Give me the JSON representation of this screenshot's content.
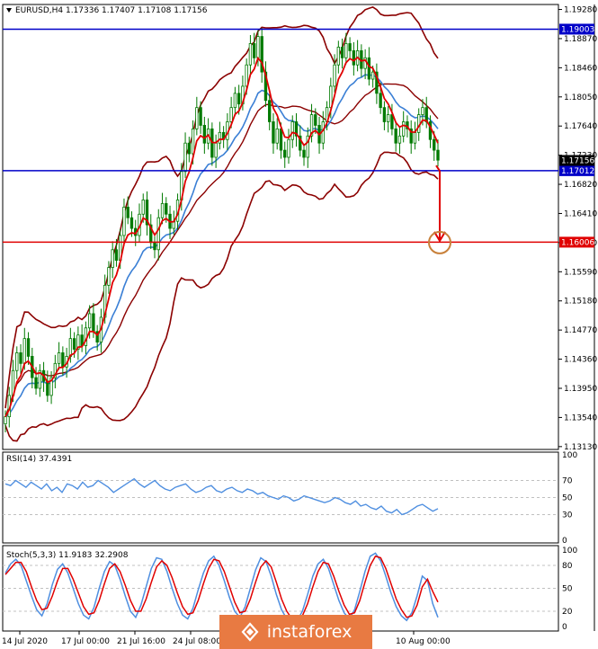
{
  "header": {
    "symbol": "EURUSD,H4",
    "ohlc": "1.17336 1.17407 1.17108 1.17156"
  },
  "rsi_header": "RSI(14) 37.4391",
  "stoch_header": "Stoch(5,3,3) 11.9183 32.2908",
  "watermark": "instaforex",
  "colors": {
    "candle": "#007a00",
    "bollinger": "#8b0000",
    "ema_fast": "#e00000",
    "ema_slow": "#3a7fd5",
    "level_blue": "#0000c8",
    "level_red": "#e00000",
    "arrow": "#e00000",
    "target_circle": "#c8803a",
    "indicator_line": "#4f8fe0",
    "signal_line": "#e00000"
  },
  "chart_data": [
    {
      "type": "candlestick",
      "title": "EURUSD,H4",
      "price_ticks": [
        "1.19280",
        "1.18870",
        "1.18460",
        "1.18050",
        "1.17640",
        "1.17230",
        "1.16820",
        "1.16410",
        "1.16000",
        "1.15590",
        "1.15180",
        "1.14770",
        "1.14360",
        "1.13950",
        "1.13540",
        "1.13130"
      ],
      "ylim": [
        1.1309,
        1.1935
      ],
      "levels": [
        {
          "value": 1.19003,
          "label": "1.19003",
          "color": "#0000c8"
        },
        {
          "value": 1.17012,
          "label": "1.17012",
          "color": "#0000c8"
        },
        {
          "value": 1.16006,
          "label": "1.16006",
          "color": "#e00000"
        }
      ],
      "current_price": {
        "value": 1.17156,
        "label": "1.17156"
      },
      "time_labels": [
        "14 Jul 2020",
        "17 Jul 00:00",
        "21 Jul 16:00",
        "24 Jul 08:00",
        "10 Aug 00:00"
      ],
      "forecast": {
        "from": 1.1701,
        "to": 1.16,
        "direction": "down"
      },
      "close": [
        1.1355,
        1.1385,
        1.142,
        1.1445,
        1.143,
        1.1465,
        1.144,
        1.141,
        1.1395,
        1.142,
        1.1405,
        1.1385,
        1.141,
        1.143,
        1.1445,
        1.1425,
        1.144,
        1.1465,
        1.145,
        1.147,
        1.1455,
        1.148,
        1.15,
        1.1475,
        1.146,
        1.1495,
        1.154,
        1.1565,
        1.159,
        1.1575,
        1.161,
        1.165,
        1.1635,
        1.162,
        1.161,
        1.164,
        1.166,
        1.1625,
        1.16,
        1.159,
        1.1635,
        1.1655,
        1.164,
        1.162,
        1.163,
        1.166,
        1.17,
        1.174,
        1.1725,
        1.176,
        1.179,
        1.1765,
        1.174,
        1.176,
        1.172,
        1.174,
        1.1755,
        1.1745,
        1.177,
        1.179,
        1.181,
        1.1795,
        1.182,
        1.185,
        1.188,
        1.186,
        1.189,
        1.184,
        1.18,
        1.177,
        1.174,
        1.176,
        1.173,
        1.172,
        1.1745,
        1.177,
        1.175,
        1.173,
        1.172,
        1.175,
        1.178,
        1.1765,
        1.174,
        1.177,
        1.179,
        1.182,
        1.185,
        1.1875,
        1.186,
        1.188,
        1.187,
        1.185,
        1.187,
        1.1845,
        1.186,
        1.183,
        1.184,
        1.181,
        1.179,
        1.177,
        1.178,
        1.176,
        1.174,
        1.175,
        1.177,
        1.176,
        1.174,
        1.1755,
        1.178,
        1.179,
        1.177,
        1.1745,
        1.173,
        1.1716
      ]
    },
    {
      "type": "line",
      "title": "RSI(14) 37.4391",
      "y_ticks": [
        "100",
        "70",
        "50",
        "30",
        "0"
      ],
      "ylim": [
        0,
        100
      ],
      "values": [
        66,
        64,
        70,
        66,
        62,
        68,
        64,
        60,
        66,
        58,
        62,
        56,
        66,
        64,
        60,
        68,
        62,
        64,
        70,
        66,
        62,
        56,
        60,
        64,
        68,
        72,
        66,
        62,
        66,
        70,
        64,
        60,
        58,
        62,
        64,
        66,
        60,
        56,
        58,
        62,
        64,
        58,
        56,
        60,
        62,
        58,
        56,
        60,
        58,
        54,
        56,
        52,
        50,
        48,
        52,
        50,
        46,
        48,
        52,
        50,
        48,
        46,
        44,
        46,
        50,
        48,
        44,
        42,
        46,
        40,
        42,
        38,
        36,
        40,
        34,
        32,
        36,
        30,
        32,
        36,
        40,
        42,
        38,
        34,
        37
      ]
    },
    {
      "type": "line",
      "title": "Stoch(5,3,3) 11.9183 32.2908",
      "y_ticks": [
        "100",
        "80",
        "50",
        "20",
        "0"
      ],
      "ylim": [
        0,
        100
      ],
      "series": [
        {
          "values": [
            70,
            82,
            88,
            80,
            60,
            40,
            22,
            14,
            30,
            55,
            75,
            82,
            70,
            50,
            30,
            15,
            10,
            25,
            50,
            72,
            85,
            80,
            62,
            40,
            20,
            12,
            28,
            52,
            76,
            90,
            88,
            72,
            50,
            30,
            15,
            10,
            24,
            48,
            70,
            86,
            92,
            80,
            60,
            38,
            20,
            12,
            26,
            50,
            74,
            90,
            85,
            66,
            42,
            22,
            10,
            5,
            8,
            20,
            42,
            66,
            82,
            88,
            76,
            55,
            34,
            18,
            10,
            22,
            46,
            72,
            92,
            96,
            86,
            66,
            44,
            26,
            14,
            8,
            18,
            40,
            66,
            60,
            30,
            12
          ]
        },
        {
          "values": [
            68,
            76,
            84,
            84,
            72,
            52,
            34,
            22,
            24,
            40,
            60,
            76,
            76,
            62,
            44,
            26,
            16,
            18,
            34,
            56,
            76,
            82,
            72,
            54,
            34,
            20,
            20,
            36,
            58,
            78,
            86,
            80,
            64,
            44,
            26,
            16,
            18,
            34,
            56,
            76,
            88,
            86,
            72,
            52,
            32,
            18,
            20,
            36,
            58,
            78,
            86,
            78,
            58,
            36,
            20,
            10,
            8,
            14,
            30,
            52,
            72,
            84,
            82,
            66,
            46,
            28,
            16,
            18,
            34,
            58,
            80,
            92,
            90,
            76,
            56,
            36,
            22,
            12,
            14,
            28,
            52,
            62,
            46,
            32
          ]
        }
      ]
    }
  ]
}
